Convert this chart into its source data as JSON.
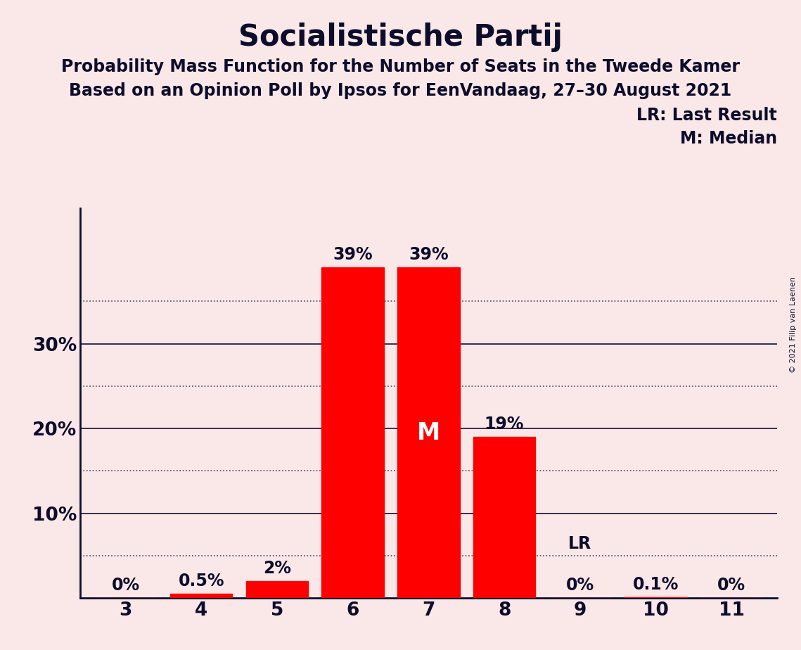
{
  "title": "Socialistische Partij",
  "subtitle1": "Probability Mass Function for the Number of Seats in the Tweede Kamer",
  "subtitle2": "Based on an Opinion Poll by Ipsos for EenVandaag, 27–30 August 2021",
  "copyright_text": "© 2021 Filip van Laenen",
  "categories": [
    3,
    4,
    5,
    6,
    7,
    8,
    9,
    10,
    11
  ],
  "values": [
    0.0,
    0.5,
    2.0,
    39.0,
    39.0,
    19.0,
    0.0,
    0.1,
    0.0
  ],
  "labels": [
    "0%",
    "0.5%",
    "2%",
    "39%",
    "39%",
    "19%",
    "0%",
    "0.1%",
    "0%"
  ],
  "bar_color": "#FF0000",
  "background_color": "#FAE8E8",
  "text_color": "#0D0D2B",
  "median_bar_index": 4,
  "median_label": "M",
  "lr_value": 5.0,
  "lr_label": "LR",
  "lr_label_index": 6,
  "ylim": [
    0,
    46
  ],
  "solid_gridlines": [
    10,
    20,
    30
  ],
  "dotted_gridlines": [
    5,
    15,
    25,
    35
  ],
  "ytick_vals": [
    10,
    20,
    30
  ],
  "grid_color": "#111133",
  "dotted_grid_color": "#444466",
  "legend_lr": "LR: Last Result",
  "legend_m": "M: Median",
  "title_fontsize": 30,
  "subtitle_fontsize": 17,
  "label_fontsize": 17,
  "tick_fontsize": 19,
  "annotation_fontsize": 17,
  "median_fontsize": 24,
  "lr_line_value": 5.0
}
